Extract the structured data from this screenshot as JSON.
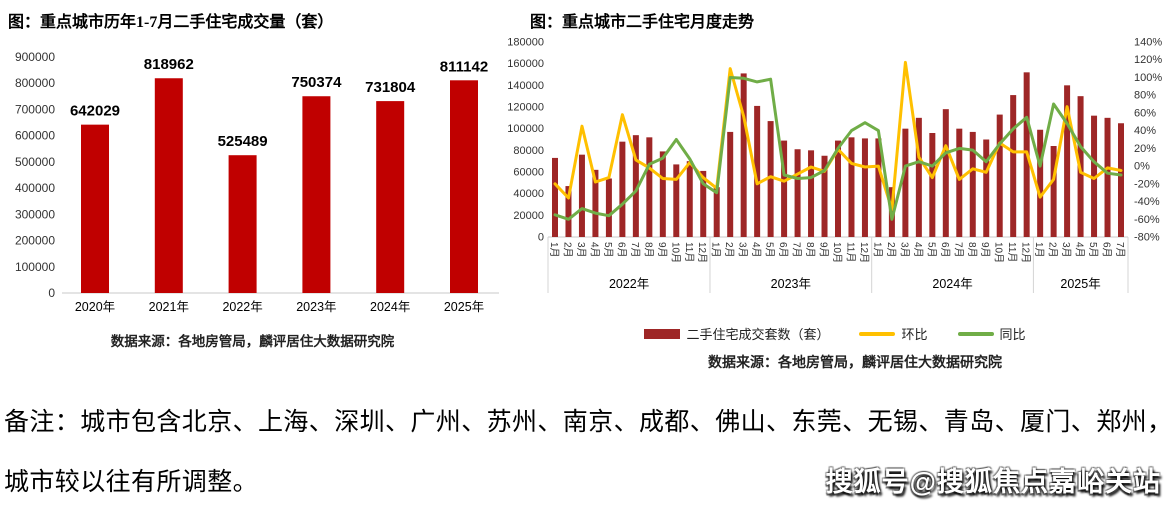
{
  "note": {
    "line1": "备注：城市包含北京、上海、深圳、广州、苏州、南京、成都、佛山、东莞、无锡、青岛、厦门、郑州，",
    "line2": "城市较以往有所调整。"
  },
  "watermark": {
    "text": "搜狐号@搜狐焦点嘉峪关站"
  },
  "chart_data": [
    {
      "type": "bar",
      "title": "图：重点城市历年1-7月二手住宅成交量（套）",
      "categories": [
        "2020年",
        "2021年",
        "2022年",
        "2023年",
        "2024年",
        "2025年"
      ],
      "values": [
        642029,
        818962,
        525489,
        750374,
        731804,
        811142
      ],
      "bar_color": "#C00000",
      "ylim": [
        0,
        900000
      ],
      "ytick_step": 100000,
      "grid": false,
      "value_labels": true,
      "source": "数据来源：各地房管局，麟评居住大数据研究院"
    },
    {
      "type": "bar+line-combo",
      "title": "图：重点城市二手住宅月度走势",
      "categories": [
        "1月",
        "2月",
        "3月",
        "4月",
        "5月",
        "6月",
        "7月",
        "8月",
        "9月",
        "10月",
        "11月",
        "12月",
        "1月",
        "2月",
        "3月",
        "4月",
        "5月",
        "6月",
        "7月",
        "8月",
        "9月",
        "10月",
        "11月",
        "12月",
        "1月",
        "2月",
        "3月",
        "4月",
        "5月",
        "6月",
        "7月",
        "8月",
        "9月",
        "10月",
        "11月",
        "12月",
        "1月",
        "2月",
        "3月",
        "4月",
        "5月",
        "6月",
        "7月"
      ],
      "year_groups": [
        {
          "label": "2022年",
          "months": 12
        },
        {
          "label": "2023年",
          "months": 12
        },
        {
          "label": "2024年",
          "months": 12
        },
        {
          "label": "2025年",
          "months": 7
        }
      ],
      "left_axis": {
        "min": 0,
        "max": 180000,
        "step": 20000
      },
      "right_axis": {
        "min": -80,
        "max": 140,
        "step": 20,
        "suffix": "%"
      },
      "series": [
        {
          "name": "二手住宅成交套数（套）",
          "type": "bar",
          "axis": "left",
          "color": "#9E2626",
          "values": [
            73000,
            47000,
            76000,
            62000,
            54000,
            88000,
            94000,
            92000,
            79000,
            67000,
            70000,
            61000,
            46000,
            97000,
            151000,
            121000,
            107000,
            89000,
            81000,
            80000,
            75000,
            89000,
            92000,
            91000,
            91000,
            46000,
            100000,
            110000,
            96000,
            118000,
            100000,
            97000,
            90000,
            113000,
            131000,
            152000,
            99000,
            84000,
            140000,
            130000,
            112000,
            110000,
            105000
          ]
        },
        {
          "name": "环比",
          "type": "line",
          "axis": "right",
          "color": "#FFC000",
          "values": [
            -20,
            -36,
            45,
            -18,
            -13,
            58,
            7,
            -2,
            -14,
            -15,
            4,
            -13,
            -25,
            110,
            56,
            -20,
            -12,
            -17,
            -9,
            -1,
            -6,
            19,
            3,
            -1,
            0,
            -49,
            117,
            10,
            -13,
            23,
            -15,
            -3,
            -7,
            26,
            16,
            16,
            -35,
            -15,
            67,
            -7,
            -14,
            -2,
            -5
          ]
        },
        {
          "name": "同比",
          "type": "line",
          "axis": "right",
          "color": "#70AD47",
          "values": [
            -55,
            -60,
            -48,
            -53,
            -56,
            -43,
            -28,
            2,
            9,
            30,
            8,
            -20,
            -30,
            100,
            99,
            95,
            98,
            -10,
            -14,
            -13,
            -5,
            20,
            40,
            49,
            40,
            -60,
            0,
            5,
            0,
            15,
            20,
            18,
            5,
            25,
            42,
            55,
            0,
            70,
            48,
            22,
            5,
            -8,
            -10
          ]
        }
      ],
      "source": "数据来源：各地房管局，麟评居住大数据研究院"
    }
  ]
}
